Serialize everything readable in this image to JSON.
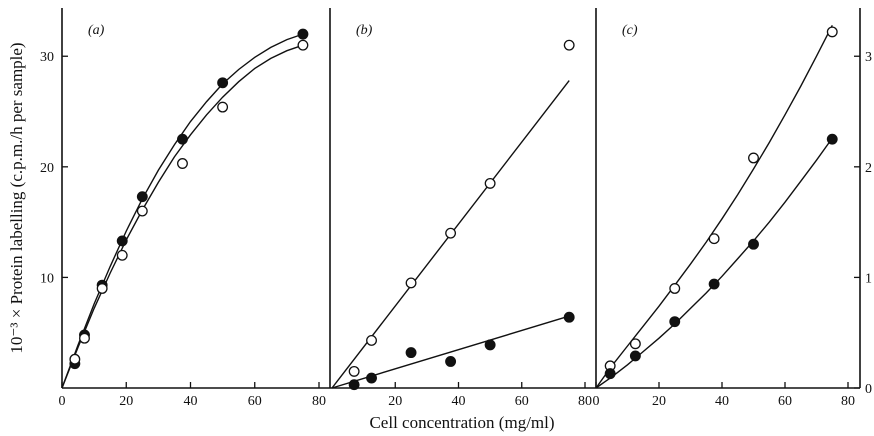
{
  "chart_data": [
    {
      "type": "scatter",
      "panel_label": "(a)",
      "xlabel": "Cell concentration (mg/ml)",
      "ylabel": "10⁻³ × Protein labelling (c.p.m./h per sample)",
      "xlim": [
        0,
        80
      ],
      "ylim": [
        0,
        34
      ],
      "xticks": [
        0,
        20,
        40,
        60,
        80
      ],
      "yticks": [
        10,
        20,
        30
      ],
      "series": [
        {
          "marker": "filled-circle",
          "x": [
            4,
            7,
            12.5,
            18.75,
            25,
            37.5,
            50,
            75
          ],
          "y": [
            2.2,
            4.8,
            9.3,
            13.3,
            17.3,
            22.5,
            27.6,
            32.0
          ]
        },
        {
          "marker": "open-circle",
          "x": [
            4,
            7,
            12.5,
            18.75,
            25,
            37.5,
            50,
            75
          ],
          "y": [
            2.6,
            4.5,
            9.0,
            12.0,
            16.0,
            20.3,
            25.4,
            31.0
          ]
        }
      ],
      "fits": [
        {
          "marker": "filled-circle",
          "x": [
            0,
            5,
            10,
            15,
            20,
            25,
            30,
            35,
            40,
            45,
            50,
            55,
            60,
            65,
            70,
            75
          ],
          "y": [
            0,
            3.9,
            7.6,
            11.0,
            14.2,
            17.1,
            19.7,
            22.0,
            24.1,
            25.9,
            27.5,
            28.8,
            29.9,
            30.8,
            31.5,
            32.0
          ]
        },
        {
          "marker": "open-circle",
          "x": [
            0,
            5,
            10,
            15,
            20,
            25,
            30,
            35,
            40,
            45,
            50,
            55,
            60,
            65,
            70,
            75
          ],
          "y": [
            0,
            3.7,
            7.2,
            10.4,
            13.4,
            16.1,
            18.6,
            20.9,
            22.9,
            24.7,
            26.3,
            27.7,
            28.9,
            29.8,
            30.5,
            31.0
          ]
        }
      ]
    },
    {
      "type": "scatter",
      "panel_label": "(b)",
      "xlim": [
        0,
        80
      ],
      "ylim": [
        0,
        34
      ],
      "xticks": [
        20,
        40,
        60,
        80
      ],
      "series": [
        {
          "marker": "open-circle",
          "x": [
            7,
            12.5,
            25,
            37.5,
            50,
            75
          ],
          "y": [
            1.5,
            4.3,
            9.5,
            14.0,
            18.5,
            31.0
          ]
        },
        {
          "marker": "filled-circle",
          "x": [
            7,
            12.5,
            25,
            37.5,
            50,
            75
          ],
          "y": [
            0.3,
            0.9,
            3.2,
            2.4,
            3.9,
            6.4
          ]
        }
      ],
      "fits": [
        {
          "marker": "open-circle",
          "x": [
            0,
            75
          ],
          "y": [
            0,
            27.8
          ]
        },
        {
          "marker": "filled-circle",
          "x": [
            0,
            75
          ],
          "y": [
            0,
            6.5
          ]
        }
      ]
    },
    {
      "type": "scatter",
      "panel_label": "(c)",
      "xlim": [
        0,
        80
      ],
      "ylim": [
        0,
        3.4
      ],
      "xticks": [
        0,
        20,
        40,
        60,
        80
      ],
      "yticks": [
        0,
        1,
        2,
        3
      ],
      "series": [
        {
          "marker": "open-circle",
          "x": [
            4.5,
            12.5,
            25,
            37.5,
            50,
            75
          ],
          "y": [
            0.2,
            0.4,
            0.9,
            1.35,
            2.08,
            3.22
          ]
        },
        {
          "marker": "filled-circle",
          "x": [
            4.5,
            12.5,
            25,
            37.5,
            50,
            75
          ],
          "y": [
            0.13,
            0.29,
            0.6,
            0.94,
            1.3,
            2.25
          ]
        }
      ],
      "fits": [
        {
          "marker": "open-circle",
          "x": [
            0,
            5,
            10,
            15,
            20,
            25,
            30,
            35,
            40,
            45,
            50,
            55,
            60,
            65,
            70,
            75
          ],
          "y": [
            0,
            0.2,
            0.38,
            0.56,
            0.74,
            0.93,
            1.12,
            1.32,
            1.53,
            1.75,
            1.98,
            2.22,
            2.47,
            2.73,
            3.0,
            3.28
          ]
        },
        {
          "marker": "filled-circle",
          "x": [
            0,
            5,
            10,
            15,
            20,
            25,
            30,
            35,
            40,
            45,
            50,
            55,
            60,
            65,
            70,
            75
          ],
          "y": [
            0,
            0.1,
            0.21,
            0.33,
            0.45,
            0.58,
            0.72,
            0.86,
            1.01,
            1.17,
            1.33,
            1.5,
            1.68,
            1.87,
            2.06,
            2.26
          ]
        }
      ]
    }
  ]
}
